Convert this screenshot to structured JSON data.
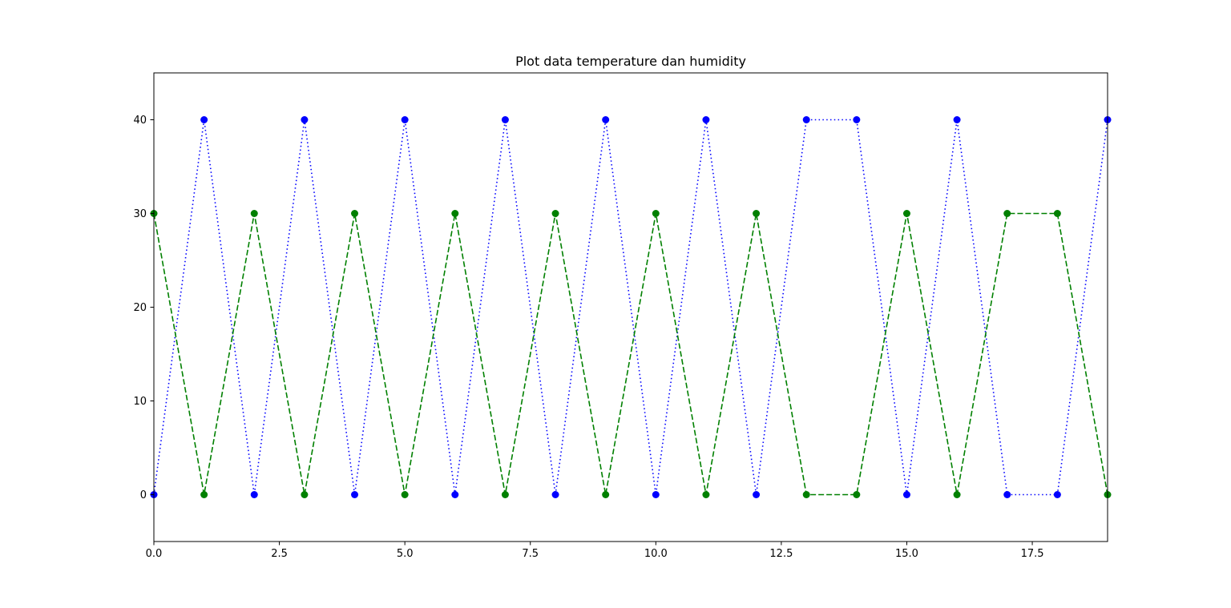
{
  "chart_data": {
    "type": "line",
    "title": "Plot data temperature dan humidity",
    "xlabel": "",
    "ylabel": "",
    "xlim": [
      0,
      19
    ],
    "ylim": [
      -5,
      45
    ],
    "xticks": [
      0.0,
      2.5,
      5.0,
      7.5,
      10.0,
      12.5,
      15.0,
      17.5
    ],
    "xtick_labels": [
      "0.0",
      "2.5",
      "5.0",
      "7.5",
      "10.0",
      "12.5",
      "15.0",
      "17.5"
    ],
    "yticks": [
      0,
      10,
      20,
      30,
      40
    ],
    "ytick_labels": [
      "0",
      "10",
      "20",
      "30",
      "40"
    ],
    "grid": false,
    "x": [
      0,
      1,
      2,
      3,
      4,
      5,
      6,
      7,
      8,
      9,
      10,
      11,
      12,
      13,
      14,
      15,
      16,
      17,
      18,
      19
    ],
    "series": [
      {
        "color": "#0000ff",
        "line_style": "dotted",
        "marker": "circle",
        "values": [
          0,
          40,
          0,
          40,
          0,
          40,
          0,
          40,
          0,
          40,
          0,
          40,
          0,
          40,
          40,
          0,
          40,
          0,
          0,
          40
        ]
      },
      {
        "color": "#008000",
        "line_style": "dashed",
        "marker": "circle",
        "values": [
          30,
          0,
          30,
          0,
          30,
          0,
          30,
          0,
          30,
          0,
          30,
          0,
          30,
          0,
          0,
          30,
          0,
          30,
          30,
          0
        ]
      }
    ]
  }
}
